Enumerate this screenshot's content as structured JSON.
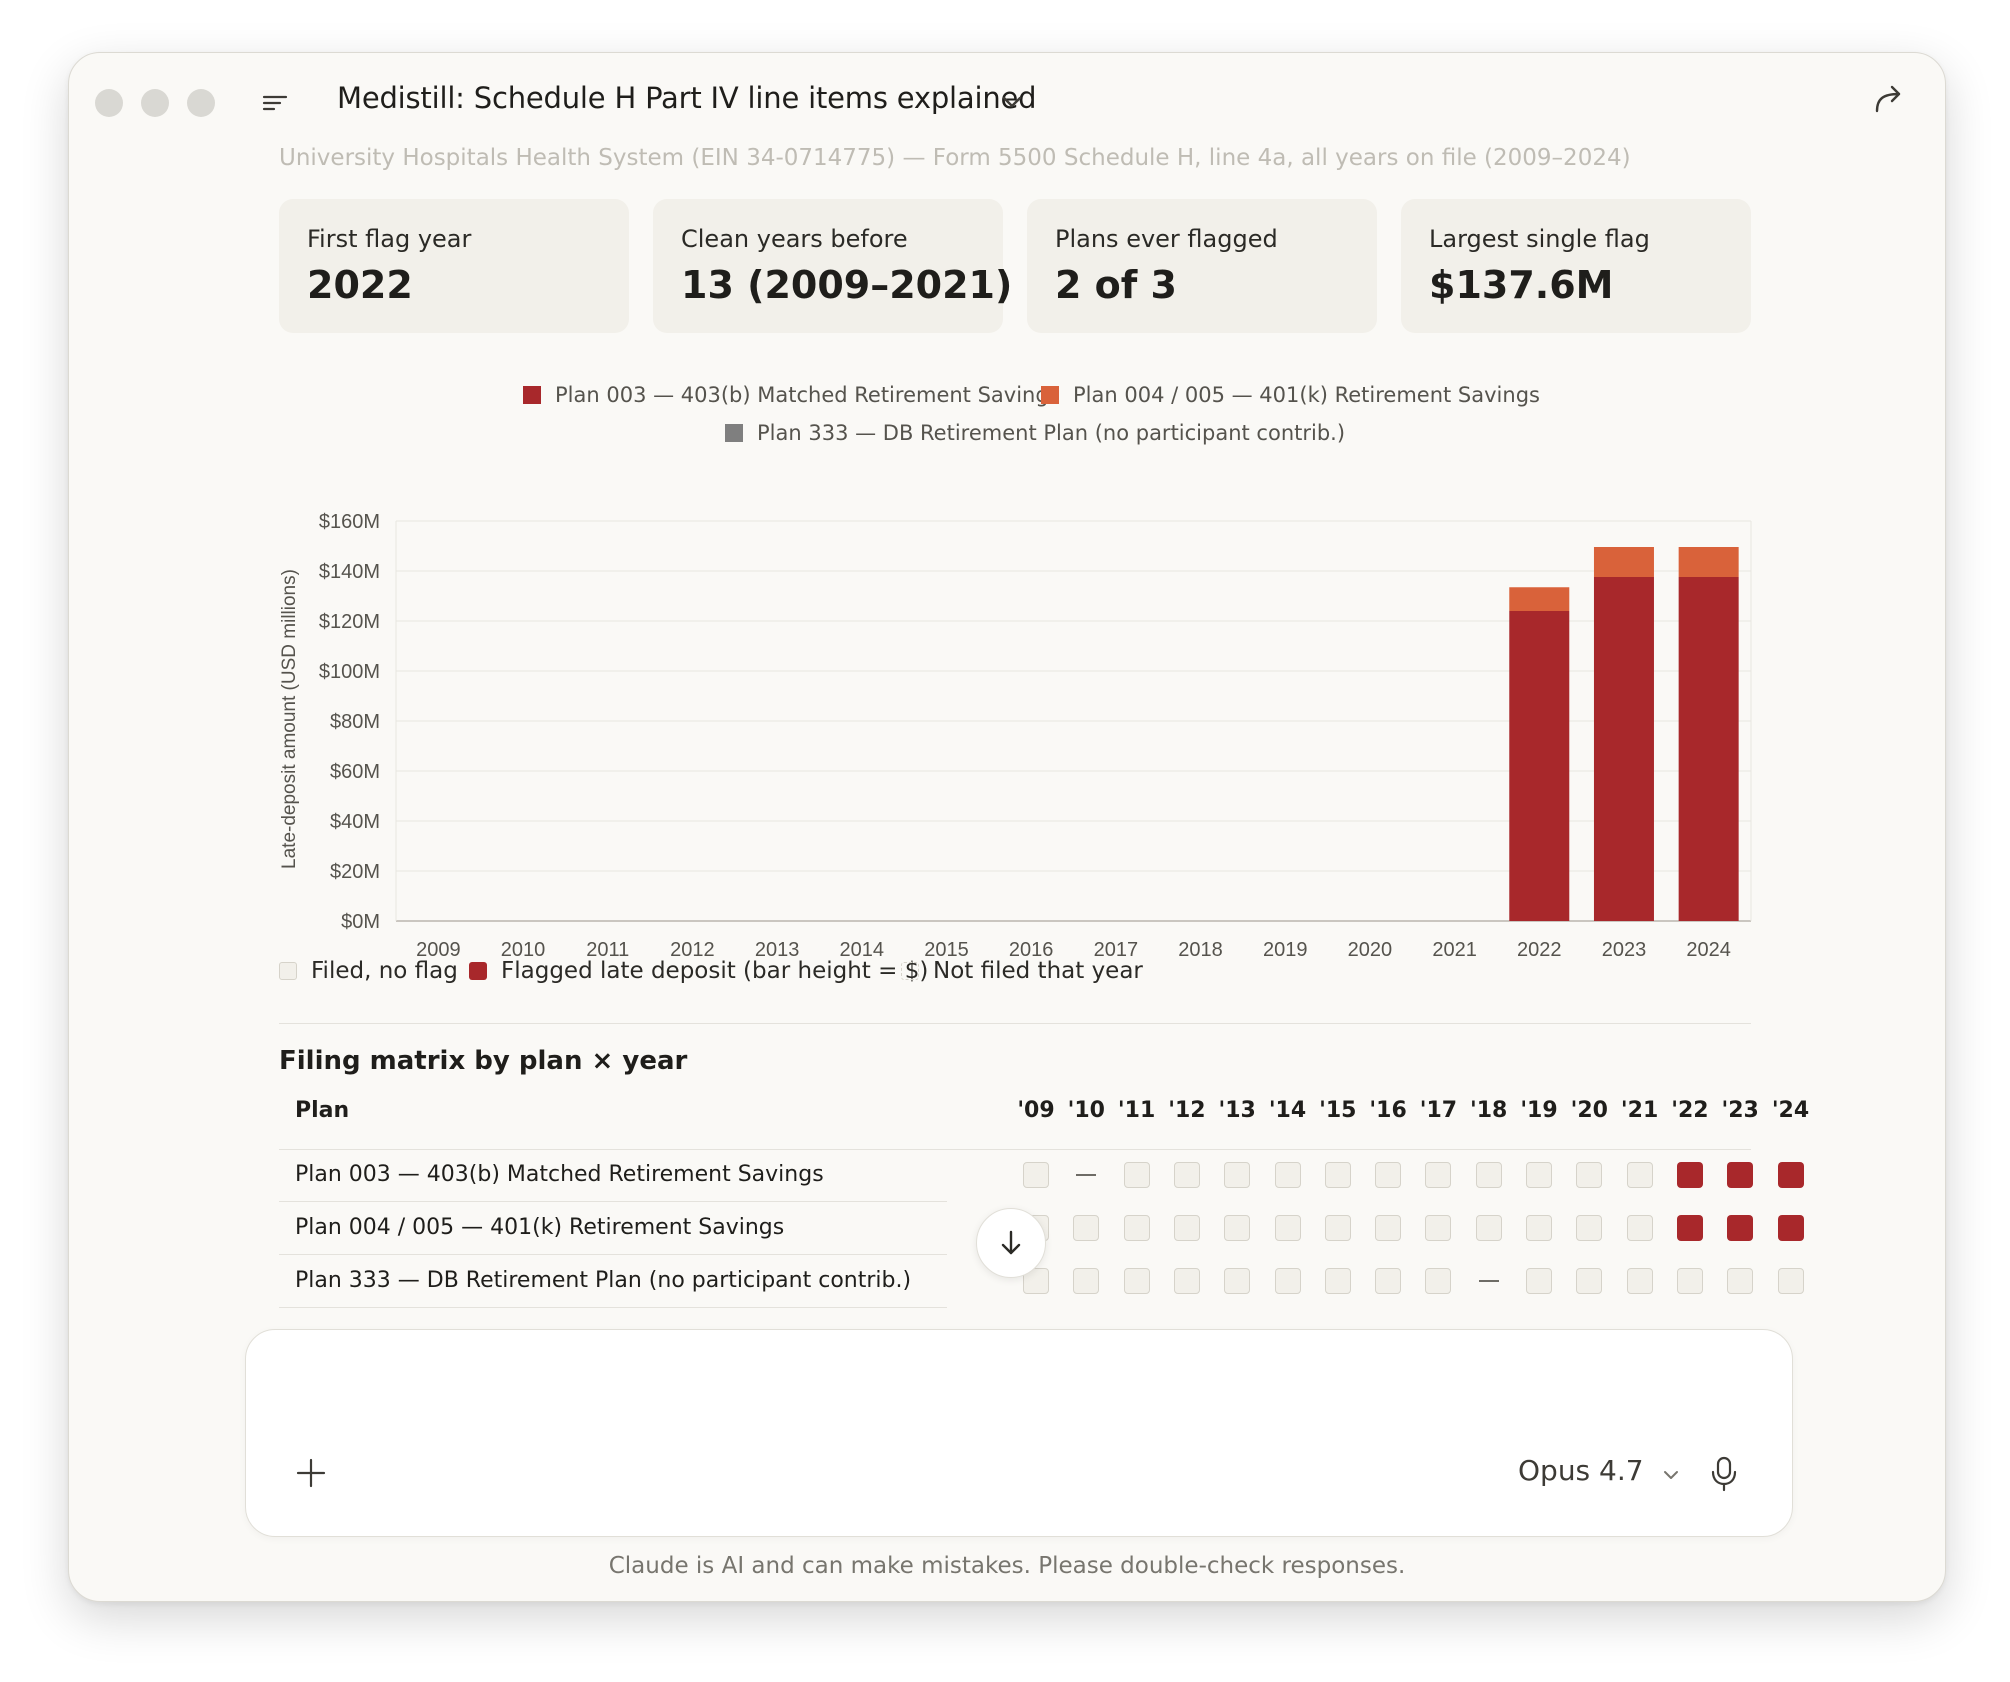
{
  "window": {
    "title": "Medistill: Schedule H Part IV line items explained"
  },
  "subtitle": "University Hospitals Health System (EIN 34-0714775) — Form 5500 Schedule H, line 4a, all years on file (2009–2024)",
  "cards": [
    {
      "label": "First flag year",
      "value": "2022"
    },
    {
      "label": "Clean years before",
      "value": "13 (2009–2021)"
    },
    {
      "label": "Plans ever flagged",
      "value": "2 of 3"
    },
    {
      "label": "Largest single flag",
      "value": "$137.6M"
    }
  ],
  "colors": {
    "plan003": "#a8282b",
    "plan004": "#d9623a",
    "plan333": "#7f7f7f",
    "clean": "#f2f0ea",
    "accent": "#a8282b"
  },
  "chart_data": {
    "type": "bar",
    "stacked": true,
    "categories": [
      "2009",
      "2010",
      "2011",
      "2012",
      "2013",
      "2014",
      "2015",
      "2016",
      "2017",
      "2018",
      "2019",
      "2020",
      "2021",
      "2022",
      "2023",
      "2024"
    ],
    "series": [
      {
        "name": "Plan 003 — 403(b) Matched Retirement Savings",
        "values": [
          0,
          0,
          0,
          0,
          0,
          0,
          0,
          0,
          0,
          0,
          0,
          0,
          0,
          124,
          137.6,
          137.6
        ]
      },
      {
        "name": "Plan 004 / 005 — 401(k) Retirement Savings",
        "values": [
          0,
          0,
          0,
          0,
          0,
          0,
          0,
          0,
          0,
          0,
          0,
          0,
          0,
          9.5,
          12,
          12
        ]
      },
      {
        "name": "Plan 333 — DB Retirement Plan (no participant contrib.)",
        "values": [
          0,
          0,
          0,
          0,
          0,
          0,
          0,
          0,
          0,
          0,
          0,
          0,
          0,
          0,
          0,
          0
        ]
      }
    ],
    "ylabel": "Late-deposit amount (USD millions)",
    "xlabel": "",
    "ylim": [
      0,
      160
    ],
    "yticks": [
      "$0M",
      "$20M",
      "$40M",
      "$60M",
      "$80M",
      "$100M",
      "$120M",
      "$140M",
      "$160M"
    ],
    "grid": true,
    "legend_position": "top"
  },
  "legend2": [
    {
      "label": "Filed, no flag"
    },
    {
      "label": "Flagged late deposit (bar height = $)"
    },
    {
      "label": "Not filed that year"
    }
  ],
  "matrix": {
    "title": "Filing matrix by plan × year",
    "plan_header": "Plan",
    "years": [
      "'09",
      "'10",
      "'11",
      "'12",
      "'13",
      "'14",
      "'15",
      "'16",
      "'17",
      "'18",
      "'19",
      "'20",
      "'21",
      "'22",
      "'23",
      "'24"
    ],
    "rows": [
      {
        "plan": "Plan 003 — 403(b) Matched Retirement Savings",
        "cells": [
          "clean",
          "dash",
          "clean",
          "clean",
          "clean",
          "clean",
          "clean",
          "clean",
          "clean",
          "clean",
          "clean",
          "clean",
          "clean",
          "flag",
          "flag",
          "flag"
        ]
      },
      {
        "plan": "Plan 004 / 005 — 401(k) Retirement Savings",
        "cells": [
          "clean",
          "clean",
          "clean",
          "clean",
          "clean",
          "clean",
          "clean",
          "clean",
          "clean",
          "clean",
          "clean",
          "clean",
          "clean",
          "flag",
          "flag",
          "flag"
        ]
      },
      {
        "plan": "Plan 333 — DB Retirement Plan (no participant contrib.)",
        "cells": [
          "clean",
          "clean",
          "clean",
          "clean",
          "clean",
          "clean",
          "clean",
          "clean",
          "clean",
          "dash",
          "clean",
          "clean",
          "clean",
          "clean",
          "clean",
          "clean"
        ]
      }
    ]
  },
  "composer": {
    "model": "Opus 4.7"
  },
  "disclaimer": "Claude is AI and can make mistakes. Please double-check responses."
}
